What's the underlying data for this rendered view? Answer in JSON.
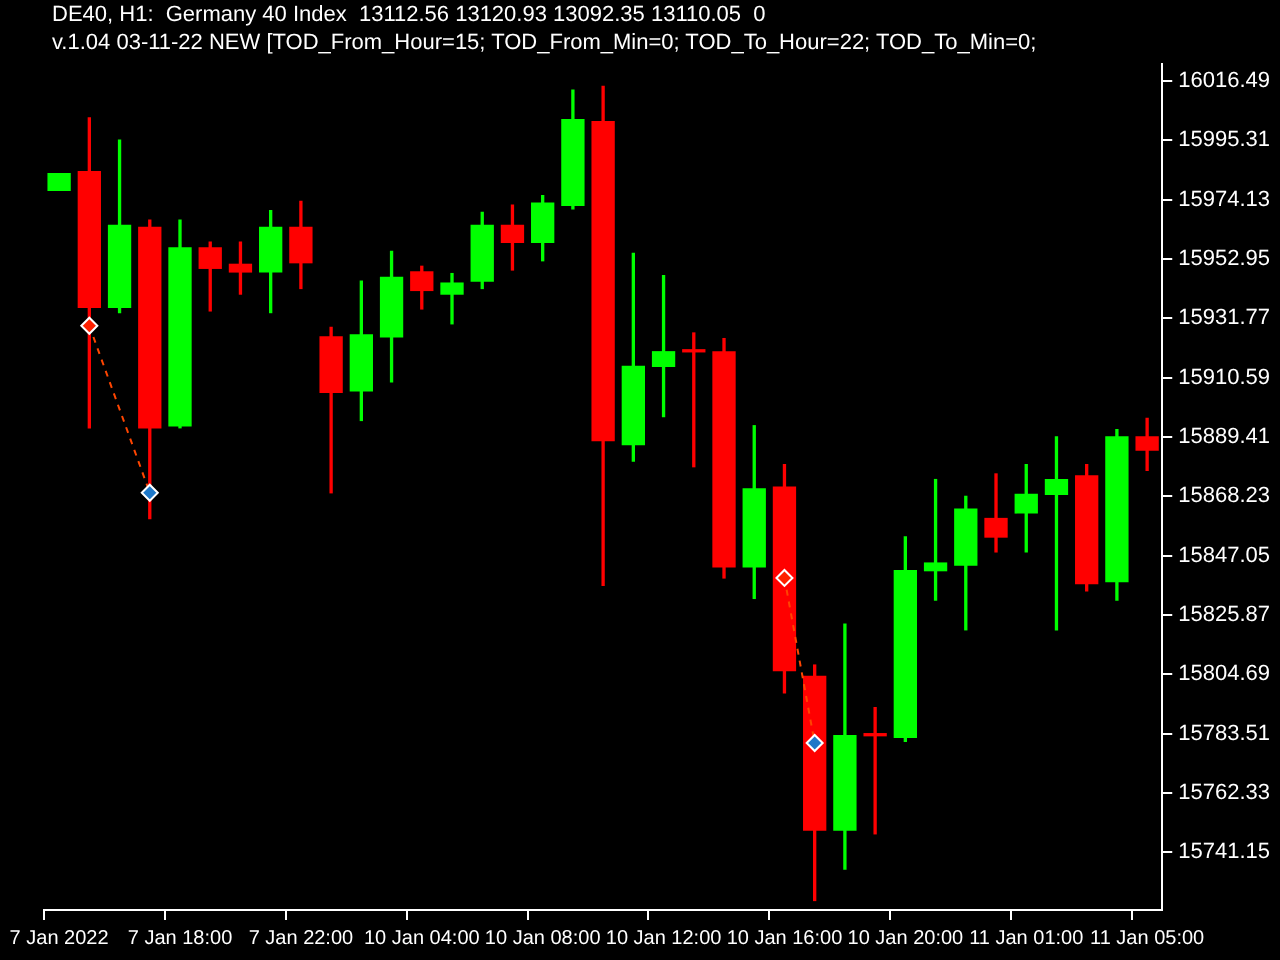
{
  "chart_data": {
    "type": "candlestick",
    "title": "DE40, H1:  Germany 40 Index  13112.56 13120.93 13092.35 13110.05  0",
    "subtitle": "v.1.04 03-11-22 NEW [TOD_From_Hour=15; TOD_From_Min=0; TOD_To_Hour=22; TOD_To_Min=0;",
    "categories": [
      "7 Jan 2022",
      null,
      null,
      null,
      "7 Jan 18:00",
      null,
      null,
      null,
      "7 Jan 22:00",
      null,
      null,
      null,
      "10 Jan 04:00",
      null,
      null,
      null,
      "10 Jan 08:00",
      null,
      null,
      null,
      "10 Jan 12:00",
      null,
      null,
      null,
      "10 Jan 16:00",
      null,
      null,
      null,
      "10 Jan 20:00",
      null,
      null,
      null,
      "11 Jan 01:00",
      null,
      null,
      null,
      "11 Jan 05:00"
    ],
    "ohlc": [
      [
        15977.4,
        15983.4,
        15977.4,
        15983.4
      ],
      [
        15984.1,
        16003.3,
        15892.7,
        15935.7
      ],
      [
        15935.7,
        15995.3,
        15933.8,
        15964.9
      ],
      [
        15964.2,
        15966.8,
        15860.3,
        15892.7
      ],
      [
        15893.4,
        15966.8,
        15892.7,
        15956.9
      ],
      [
        15956.9,
        15958.9,
        15934.4,
        15949.6
      ],
      [
        15951.0,
        15958.9,
        15940.4,
        15948.3
      ],
      [
        15948.3,
        15970.2,
        15933.8,
        15964.2
      ],
      [
        15964.2,
        15973.5,
        15942.4,
        15951.6
      ],
      [
        15925.1,
        15928.5,
        15869.5,
        15905.3
      ],
      [
        15905.9,
        15945.0,
        15895.3,
        15925.8
      ],
      [
        15925.1,
        15955.6,
        15909.1,
        15946.3
      ],
      [
        15948.3,
        15950.3,
        15935.1,
        15941.7
      ],
      [
        15940.4,
        15947.7,
        15929.8,
        15944.3
      ],
      [
        15945.0,
        15969.5,
        15942.4,
        15964.9
      ],
      [
        15964.9,
        15972.1,
        15949.0,
        15958.9
      ],
      [
        15958.9,
        15975.5,
        15952.3,
        15972.8
      ],
      [
        15972.1,
        16013.2,
        15970.8,
        16002.6
      ],
      [
        16001.9,
        16014.5,
        15836.5,
        15888.1
      ],
      [
        15886.7,
        15954.9,
        15880.8,
        15914.6
      ],
      [
        15914.6,
        15947.0,
        15896.7,
        15919.8
      ],
      [
        15919.8,
        15926.5,
        15878.8,
        15919.8
      ],
      [
        15919.8,
        15924.5,
        15839.1,
        15843.1
      ],
      [
        15843.1,
        15893.4,
        15831.8,
        15870.9
      ],
      [
        15871.5,
        15879.5,
        15798.1,
        15806.0
      ],
      [
        15804.0,
        15808.0,
        15724.0,
        15749.1
      ],
      [
        15749.1,
        15822.6,
        15735.2,
        15782.8
      ],
      [
        15782.8,
        15792.8,
        15747.8,
        15782.8
      ],
      [
        15782.2,
        15853.7,
        15780.8,
        15841.7
      ],
      [
        15841.7,
        15874.2,
        15831.2,
        15844.4
      ],
      [
        15843.7,
        15868.2,
        15820.6,
        15863.6
      ],
      [
        15860.3,
        15876.2,
        15848.4,
        15853.7
      ],
      [
        15862.3,
        15879.5,
        15848.4,
        15868.9
      ],
      [
        15868.9,
        15889.4,
        15820.6,
        15874.2
      ],
      [
        15875.5,
        15879.5,
        15834.5,
        15837.1
      ],
      [
        15837.8,
        15892.0,
        15831.2,
        15889.4
      ],
      [
        15889.4,
        15896.0,
        15877.5,
        15884.7
      ]
    ],
    "colors": [
      "#00ff00",
      "#ff0000",
      "#00ff00",
      "#ff0000",
      "#00ff00",
      "#ff0000",
      "#ff0000",
      "#00ff00",
      "#ff0000",
      "#ff0000",
      "#00ff00",
      "#00ff00",
      "#ff0000",
      "#00ff00",
      "#00ff00",
      "#ff0000",
      "#00ff00",
      "#00ff00",
      "#ff0000",
      "#00ff00",
      "#00ff00",
      "#ff0000",
      "#ff0000",
      "#00ff00",
      "#ff0000",
      "#ff0000",
      "#00ff00",
      "#ff0000",
      "#00ff00",
      "#00ff00",
      "#00ff00",
      "#ff0000",
      "#00ff00",
      "#00ff00",
      "#ff0000",
      "#00ff00",
      "#ff0000"
    ],
    "ylim": [
      15720.6,
      16022.5
    ],
    "yticks": [
      15741.15,
      15762.33,
      15783.51,
      15804.69,
      15825.87,
      15847.05,
      15868.23,
      15889.41,
      15910.59,
      15931.77,
      15952.95,
      15974.13,
      15995.31,
      16016.49
    ],
    "grid": false,
    "legend": false,
    "series": [
      {
        "type": "line",
        "color": "#ff4500",
        "line_style": "dashed",
        "marker": "diamond",
        "colors": [
          null,
          "#ff2000",
          null,
          "#1e78c8",
          null,
          null,
          null,
          null,
          null,
          null,
          null,
          null,
          null,
          null,
          null,
          null,
          null,
          null,
          null,
          null,
          null,
          null,
          null,
          null,
          null,
          null,
          null,
          null,
          null,
          null,
          null,
          null,
          null,
          null,
          null,
          null,
          null
        ],
        "values": [
          null,
          15929.1,
          null,
          15869.5,
          null,
          null,
          null,
          null,
          null,
          null,
          null,
          null,
          null,
          null,
          null,
          null,
          null,
          null,
          null,
          null,
          null,
          null,
          null,
          null,
          null,
          null,
          null,
          null,
          null,
          null,
          null,
          null,
          null,
          null,
          null,
          null,
          null
        ]
      },
      {
        "type": "line",
        "color": "#ff4500",
        "line_style": "dashed",
        "marker": "diamond",
        "colors": [
          null,
          null,
          null,
          null,
          null,
          null,
          null,
          null,
          null,
          null,
          null,
          null,
          null,
          null,
          null,
          null,
          null,
          null,
          null,
          null,
          null,
          null,
          null,
          null,
          "#ff2000",
          "#1e78c8",
          null,
          null,
          null,
          null,
          null,
          null,
          null,
          null,
          null,
          null,
          null
        ],
        "values": [
          null,
          null,
          null,
          null,
          null,
          null,
          null,
          null,
          null,
          null,
          null,
          null,
          null,
          null,
          null,
          null,
          null,
          null,
          null,
          null,
          null,
          null,
          null,
          null,
          15839.1,
          15780.2,
          null,
          null,
          null,
          null,
          null,
          null,
          null,
          null,
          null,
          null,
          null
        ]
      }
    ]
  }
}
